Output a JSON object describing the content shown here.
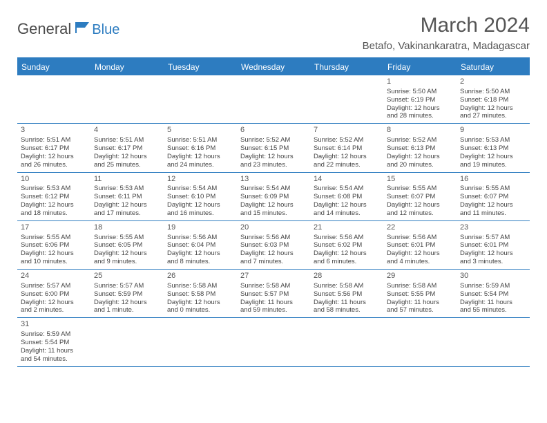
{
  "logo": {
    "general": "General",
    "blue": "Blue"
  },
  "title": {
    "month_year": "March 2024",
    "location": "Betafo, Vakinankaratra, Madagascar"
  },
  "colors": {
    "accent": "#2d7cc0",
    "accent_light": "#2d7cc0",
    "text": "#444",
    "header_text": "#555"
  },
  "day_names": [
    "Sunday",
    "Monday",
    "Tuesday",
    "Wednesday",
    "Thursday",
    "Friday",
    "Saturday"
  ],
  "weeks": [
    [
      {
        "empty": true
      },
      {
        "empty": true
      },
      {
        "empty": true
      },
      {
        "empty": true
      },
      {
        "empty": true
      },
      {
        "num": "1",
        "sunrise": "Sunrise: 5:50 AM",
        "sunset": "Sunset: 6:19 PM",
        "day1": "Daylight: 12 hours",
        "day2": "and 28 minutes."
      },
      {
        "num": "2",
        "sunrise": "Sunrise: 5:50 AM",
        "sunset": "Sunset: 6:18 PM",
        "day1": "Daylight: 12 hours",
        "day2": "and 27 minutes."
      }
    ],
    [
      {
        "num": "3",
        "sunrise": "Sunrise: 5:51 AM",
        "sunset": "Sunset: 6:17 PM",
        "day1": "Daylight: 12 hours",
        "day2": "and 26 minutes."
      },
      {
        "num": "4",
        "sunrise": "Sunrise: 5:51 AM",
        "sunset": "Sunset: 6:17 PM",
        "day1": "Daylight: 12 hours",
        "day2": "and 25 minutes."
      },
      {
        "num": "5",
        "sunrise": "Sunrise: 5:51 AM",
        "sunset": "Sunset: 6:16 PM",
        "day1": "Daylight: 12 hours",
        "day2": "and 24 minutes."
      },
      {
        "num": "6",
        "sunrise": "Sunrise: 5:52 AM",
        "sunset": "Sunset: 6:15 PM",
        "day1": "Daylight: 12 hours",
        "day2": "and 23 minutes."
      },
      {
        "num": "7",
        "sunrise": "Sunrise: 5:52 AM",
        "sunset": "Sunset: 6:14 PM",
        "day1": "Daylight: 12 hours",
        "day2": "and 22 minutes."
      },
      {
        "num": "8",
        "sunrise": "Sunrise: 5:52 AM",
        "sunset": "Sunset: 6:13 PM",
        "day1": "Daylight: 12 hours",
        "day2": "and 20 minutes."
      },
      {
        "num": "9",
        "sunrise": "Sunrise: 5:53 AM",
        "sunset": "Sunset: 6:13 PM",
        "day1": "Daylight: 12 hours",
        "day2": "and 19 minutes."
      }
    ],
    [
      {
        "num": "10",
        "sunrise": "Sunrise: 5:53 AM",
        "sunset": "Sunset: 6:12 PM",
        "day1": "Daylight: 12 hours",
        "day2": "and 18 minutes."
      },
      {
        "num": "11",
        "sunrise": "Sunrise: 5:53 AM",
        "sunset": "Sunset: 6:11 PM",
        "day1": "Daylight: 12 hours",
        "day2": "and 17 minutes."
      },
      {
        "num": "12",
        "sunrise": "Sunrise: 5:54 AM",
        "sunset": "Sunset: 6:10 PM",
        "day1": "Daylight: 12 hours",
        "day2": "and 16 minutes."
      },
      {
        "num": "13",
        "sunrise": "Sunrise: 5:54 AM",
        "sunset": "Sunset: 6:09 PM",
        "day1": "Daylight: 12 hours",
        "day2": "and 15 minutes."
      },
      {
        "num": "14",
        "sunrise": "Sunrise: 5:54 AM",
        "sunset": "Sunset: 6:08 PM",
        "day1": "Daylight: 12 hours",
        "day2": "and 14 minutes."
      },
      {
        "num": "15",
        "sunrise": "Sunrise: 5:55 AM",
        "sunset": "Sunset: 6:07 PM",
        "day1": "Daylight: 12 hours",
        "day2": "and 12 minutes."
      },
      {
        "num": "16",
        "sunrise": "Sunrise: 5:55 AM",
        "sunset": "Sunset: 6:07 PM",
        "day1": "Daylight: 12 hours",
        "day2": "and 11 minutes."
      }
    ],
    [
      {
        "num": "17",
        "sunrise": "Sunrise: 5:55 AM",
        "sunset": "Sunset: 6:06 PM",
        "day1": "Daylight: 12 hours",
        "day2": "and 10 minutes."
      },
      {
        "num": "18",
        "sunrise": "Sunrise: 5:55 AM",
        "sunset": "Sunset: 6:05 PM",
        "day1": "Daylight: 12 hours",
        "day2": "and 9 minutes."
      },
      {
        "num": "19",
        "sunrise": "Sunrise: 5:56 AM",
        "sunset": "Sunset: 6:04 PM",
        "day1": "Daylight: 12 hours",
        "day2": "and 8 minutes."
      },
      {
        "num": "20",
        "sunrise": "Sunrise: 5:56 AM",
        "sunset": "Sunset: 6:03 PM",
        "day1": "Daylight: 12 hours",
        "day2": "and 7 minutes."
      },
      {
        "num": "21",
        "sunrise": "Sunrise: 5:56 AM",
        "sunset": "Sunset: 6:02 PM",
        "day1": "Daylight: 12 hours",
        "day2": "and 6 minutes."
      },
      {
        "num": "22",
        "sunrise": "Sunrise: 5:56 AM",
        "sunset": "Sunset: 6:01 PM",
        "day1": "Daylight: 12 hours",
        "day2": "and 4 minutes."
      },
      {
        "num": "23",
        "sunrise": "Sunrise: 5:57 AM",
        "sunset": "Sunset: 6:01 PM",
        "day1": "Daylight: 12 hours",
        "day2": "and 3 minutes."
      }
    ],
    [
      {
        "num": "24",
        "sunrise": "Sunrise: 5:57 AM",
        "sunset": "Sunset: 6:00 PM",
        "day1": "Daylight: 12 hours",
        "day2": "and 2 minutes."
      },
      {
        "num": "25",
        "sunrise": "Sunrise: 5:57 AM",
        "sunset": "Sunset: 5:59 PM",
        "day1": "Daylight: 12 hours",
        "day2": "and 1 minute."
      },
      {
        "num": "26",
        "sunrise": "Sunrise: 5:58 AM",
        "sunset": "Sunset: 5:58 PM",
        "day1": "Daylight: 12 hours",
        "day2": "and 0 minutes."
      },
      {
        "num": "27",
        "sunrise": "Sunrise: 5:58 AM",
        "sunset": "Sunset: 5:57 PM",
        "day1": "Daylight: 11 hours",
        "day2": "and 59 minutes."
      },
      {
        "num": "28",
        "sunrise": "Sunrise: 5:58 AM",
        "sunset": "Sunset: 5:56 PM",
        "day1": "Daylight: 11 hours",
        "day2": "and 58 minutes."
      },
      {
        "num": "29",
        "sunrise": "Sunrise: 5:58 AM",
        "sunset": "Sunset: 5:55 PM",
        "day1": "Daylight: 11 hours",
        "day2": "and 57 minutes."
      },
      {
        "num": "30",
        "sunrise": "Sunrise: 5:59 AM",
        "sunset": "Sunset: 5:54 PM",
        "day1": "Daylight: 11 hours",
        "day2": "and 55 minutes."
      }
    ],
    [
      {
        "num": "31",
        "sunrise": "Sunrise: 5:59 AM",
        "sunset": "Sunset: 5:54 PM",
        "day1": "Daylight: 11 hours",
        "day2": "and 54 minutes."
      },
      {
        "empty": true
      },
      {
        "empty": true
      },
      {
        "empty": true
      },
      {
        "empty": true
      },
      {
        "empty": true
      },
      {
        "empty": true
      }
    ]
  ]
}
